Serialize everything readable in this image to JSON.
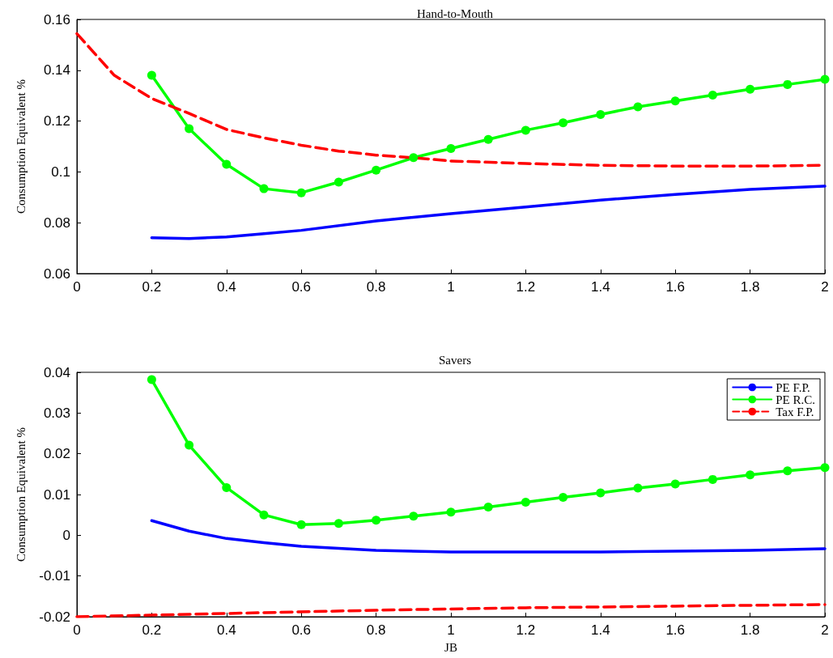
{
  "chart_data": [
    {
      "type": "line",
      "title": "Hand-to-Mouth",
      "ylabel": "Consumption Equivalent %",
      "xlim": [
        0,
        2
      ],
      "xticks": [
        0,
        0.2,
        0.4,
        0.6,
        0.8,
        1,
        1.2,
        1.4,
        1.6,
        1.8,
        2
      ],
      "ylim": [
        0.06,
        0.16
      ],
      "yticks": [
        0.06,
        0.08,
        0.1,
        0.12,
        0.14,
        0.16
      ],
      "grid": false,
      "legend": false,
      "series": [
        {
          "color": "#0000ff",
          "marker": "none",
          "line_style": "solid",
          "x": [
            0.2,
            0.3,
            0.4,
            0.5,
            0.6,
            0.8,
            1,
            1.2,
            1.4,
            1.6,
            1.8,
            2
          ],
          "values": [
            0.0741,
            0.0738,
            0.0744,
            0.0757,
            0.077,
            0.0807,
            0.0836,
            0.0862,
            0.0889,
            0.0911,
            0.0931,
            0.0944
          ]
        },
        {
          "color": "#00ff00",
          "marker": "circle",
          "line_style": "solid",
          "x": [
            0.2,
            0.3,
            0.4,
            0.5,
            0.6,
            0.7,
            0.8,
            0.9,
            1,
            1.1,
            1.2,
            1.3,
            1.4,
            1.5,
            1.6,
            1.7,
            1.8,
            1.9,
            2
          ],
          "values": [
            0.138,
            0.117,
            0.103,
            0.0934,
            0.0918,
            0.096,
            0.1007,
            0.1056,
            0.1092,
            0.1128,
            0.1164,
            0.1193,
            0.1226,
            0.1256,
            0.1279,
            0.1302,
            0.1325,
            0.1344,
            0.1364
          ]
        },
        {
          "color": "#ff0000",
          "marker": "none",
          "line_style": "dashed",
          "x": [
            0,
            0.1,
            0.2,
            0.3,
            0.4,
            0.5,
            0.6,
            0.7,
            0.8,
            0.9,
            1,
            1.2,
            1.4,
            1.6,
            1.8,
            2
          ],
          "values": [
            0.1544,
            0.138,
            0.1289,
            0.123,
            0.1167,
            0.1134,
            0.1105,
            0.1082,
            0.1066,
            0.1056,
            0.1043,
            0.1033,
            0.1026,
            0.1023,
            0.1023,
            0.1026
          ]
        }
      ]
    },
    {
      "type": "line",
      "title": "Savers",
      "xlabel": "JB",
      "ylabel": "Consumption Equivalent %",
      "xlim": [
        0,
        2
      ],
      "xticks": [
        0,
        0.2,
        0.4,
        0.6,
        0.8,
        1,
        1.2,
        1.4,
        1.6,
        1.8,
        2
      ],
      "ylim": [
        -0.02,
        0.04
      ],
      "yticks": [
        -0.02,
        -0.01,
        0,
        0.01,
        0.02,
        0.03,
        0.04
      ],
      "grid": false,
      "legend": "top right",
      "series": [
        {
          "name": "PE F.P.",
          "color": "#0000ff",
          "marker": "none",
          "line_style": "solid",
          "x": [
            0.2,
            0.3,
            0.4,
            0.5,
            0.6,
            0.8,
            1,
            1.2,
            1.4,
            1.6,
            1.8,
            2
          ],
          "values": [
            0.0036,
            0.001,
            -0.0008,
            -0.0018,
            -0.0027,
            -0.0037,
            -0.0041,
            -0.0041,
            -0.0041,
            -0.0039,
            -0.0037,
            -0.0033
          ]
        },
        {
          "name": "PE R.C.",
          "color": "#00ff00",
          "marker": "circle",
          "line_style": "solid",
          "x": [
            0.2,
            0.3,
            0.4,
            0.5,
            0.6,
            0.7,
            0.8,
            0.9,
            1,
            1.1,
            1.2,
            1.3,
            1.4,
            1.5,
            1.6,
            1.7,
            1.8,
            1.9,
            2
          ],
          "values": [
            0.0382,
            0.0221,
            0.0117,
            0.005,
            0.0026,
            0.0029,
            0.0037,
            0.0047,
            0.0057,
            0.0069,
            0.0081,
            0.0093,
            0.0104,
            0.0116,
            0.0126,
            0.0137,
            0.0148,
            0.0158,
            0.0166
          ]
        },
        {
          "name": "Tax F.P.",
          "color": "#ff0000",
          "marker": "none",
          "line_style": "dashed",
          "x": [
            0,
            0.4,
            0.8,
            1.2,
            1.6,
            2
          ],
          "values": [
            -0.02,
            -0.0192,
            -0.0184,
            -0.0178,
            -0.0174,
            -0.017
          ]
        }
      ]
    }
  ]
}
